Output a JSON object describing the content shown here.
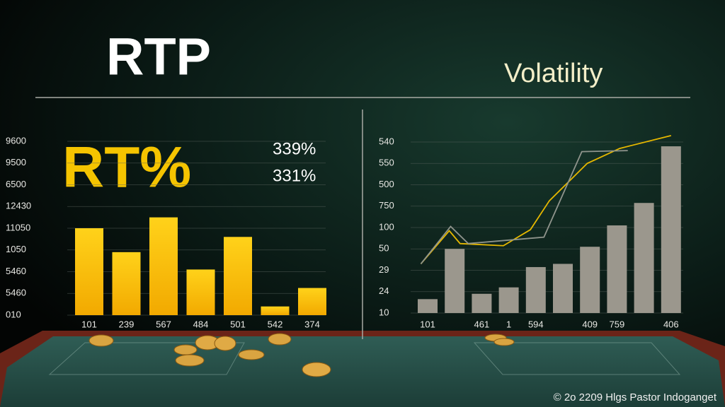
{
  "footer": "© 2o 2209 Hlgs Pastor Indoganget",
  "chart_data": [
    {
      "type": "bar",
      "title": "RTP",
      "headline": "RT%",
      "annotations": [
        "339%",
        "331%"
      ],
      "categories": [
        "101",
        "239",
        "567",
        "484",
        "501",
        "542",
        "374"
      ],
      "values": [
        4,
        2.9,
        4.5,
        2.1,
        3.6,
        0.4,
        1.25
      ],
      "color": "#f5c400",
      "ylim": [
        0,
        8
      ],
      "yticks": [
        {
          "value": 0,
          "label": "010"
        },
        {
          "value": 1,
          "label": "5460"
        },
        {
          "value": 2,
          "label": "5460"
        },
        {
          "value": 3,
          "label": "1050"
        },
        {
          "value": 4,
          "label": "11050"
        },
        {
          "value": 5,
          "label": "12430"
        },
        {
          "value": 6,
          "label": "6500"
        },
        {
          "value": 7,
          "label": "9500"
        },
        {
          "value": 8,
          "label": "9600"
        }
      ],
      "grid": true
    },
    {
      "type": "bar",
      "title": "Volatility",
      "categories": [
        "101",
        null,
        "461",
        "1",
        "594",
        null,
        "409",
        "759",
        null,
        "406"
      ],
      "ylim": [
        0,
        8.5
      ],
      "yticks": [
        {
          "value": 0,
          "label": "10"
        },
        {
          "value": 1,
          "label": "24"
        },
        {
          "value": 2,
          "label": "29"
        },
        {
          "value": 3,
          "label": "50"
        },
        {
          "value": 4,
          "label": "100"
        },
        {
          "value": 5,
          "label": "750"
        },
        {
          "value": 6,
          "label": "500"
        },
        {
          "value": 7,
          "label": "550"
        },
        {
          "value": 8,
          "label": "540"
        }
      ],
      "grid": true,
      "series": [
        {
          "type": "bar",
          "color": "#9b978d",
          "values": [
            0.65,
            3,
            0.9,
            1.2,
            2.15,
            2.3,
            3.1,
            4.1,
            5.15,
            7.8
          ]
        },
        {
          "type": "line",
          "color": "#e6b800",
          "x": [
            -0.25,
            0.8,
            1.2,
            2.8,
            3.8,
            4.5,
            5.9,
            7.1,
            9.0
          ],
          "values": [
            2.3,
            3.85,
            3.25,
            3.15,
            3.9,
            5.25,
            7.0,
            7.7,
            8.3
          ]
        },
        {
          "type": "line",
          "color": "#8f948c",
          "x": [
            -0.25,
            0.85,
            1.5,
            4.3,
            5.7,
            7.4
          ],
          "values": [
            2.3,
            4.05,
            3.25,
            3.55,
            7.55,
            7.6
          ]
        }
      ]
    }
  ]
}
